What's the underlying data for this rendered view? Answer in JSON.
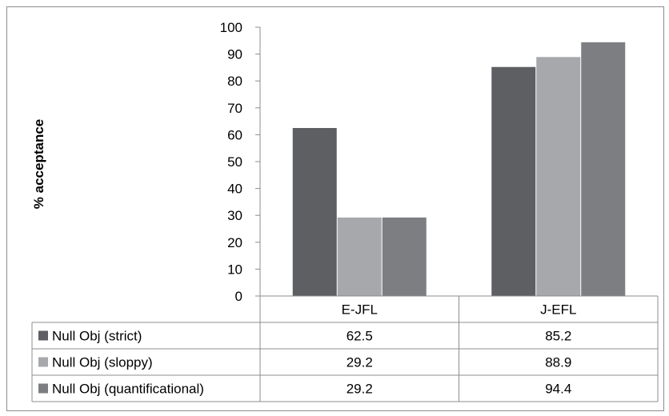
{
  "chart_data": {
    "type": "bar",
    "title": "",
    "xlabel": "",
    "ylabel": "% acceptance",
    "ylim": [
      0,
      100
    ],
    "yticks": [
      0,
      10,
      20,
      30,
      40,
      50,
      60,
      70,
      80,
      90,
      100
    ],
    "categories": [
      "E-JFL",
      "J-EFL"
    ],
    "series": [
      {
        "name": "Null Obj (strict)",
        "values": [
          62.5,
          85.2
        ],
        "color": "#5e5f63"
      },
      {
        "name": "Null Obj (sloppy)",
        "values": [
          29.2,
          88.9
        ],
        "color": "#a7a8ab"
      },
      {
        "name": "Null Obj (quantificational)",
        "values": [
          29.2,
          94.4
        ],
        "color": "#7d7e82"
      }
    ],
    "value_labels": [
      [
        "62.5",
        "85.2"
      ],
      [
        "29.2",
        "88.9"
      ],
      [
        "29.2",
        "94.4"
      ]
    ],
    "grid": false,
    "legend": "data-table-below"
  }
}
